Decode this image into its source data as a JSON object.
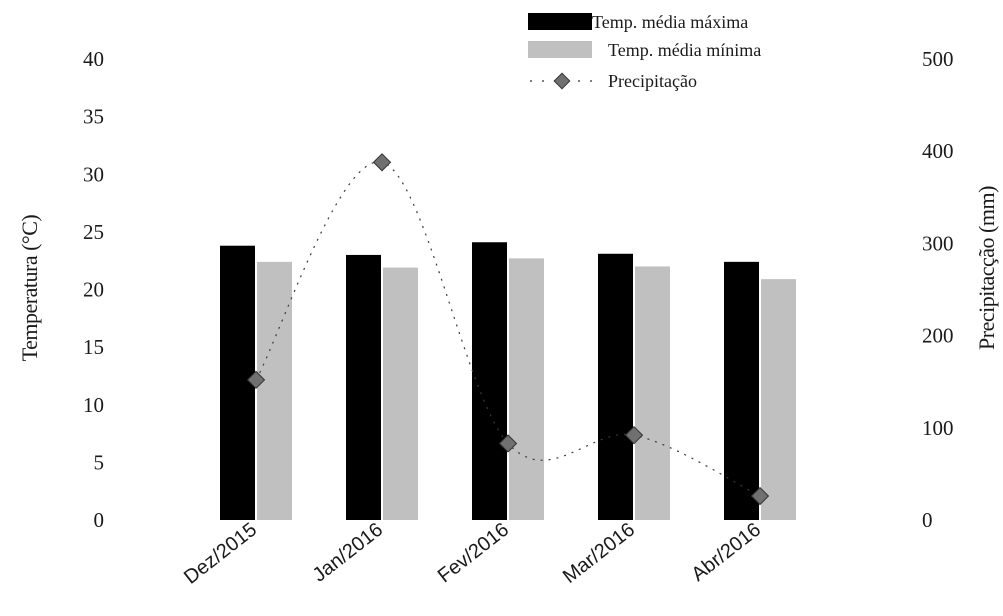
{
  "chart_data": {
    "type": "bar",
    "categories": [
      "Dez/2015",
      "Jan/2016",
      "Fev/2016",
      "Mar/2016",
      "Abr/2016"
    ],
    "series": [
      {
        "name": "Temp.  média máxima",
        "type": "bar",
        "axis": "left",
        "color": "#000000",
        "values": [
          23.8,
          23.0,
          24.1,
          23.1,
          22.4
        ]
      },
      {
        "name": "Temp.  média mínima",
        "type": "bar",
        "axis": "left",
        "color": "#c0c0c0",
        "values": [
          22.4,
          21.9,
          22.7,
          22.0,
          20.9
        ]
      },
      {
        "name": "Precipitação",
        "type": "line",
        "axis": "right",
        "color": "#6b6b6b",
        "values": [
          152,
          388,
          83,
          92,
          26
        ]
      }
    ],
    "ylabel": "Temperatura (°C)",
    "ylabel_right": "Precipitacção (mm)",
    "ylim": [
      0,
      40
    ],
    "yticks": [
      0,
      5,
      10,
      15,
      20,
      25,
      30,
      35,
      40
    ],
    "ylim_right": [
      0,
      500
    ],
    "yticks_right": [
      0,
      100,
      200,
      300,
      400,
      500
    ],
    "legend_position": "top-right",
    "grid": false
  }
}
